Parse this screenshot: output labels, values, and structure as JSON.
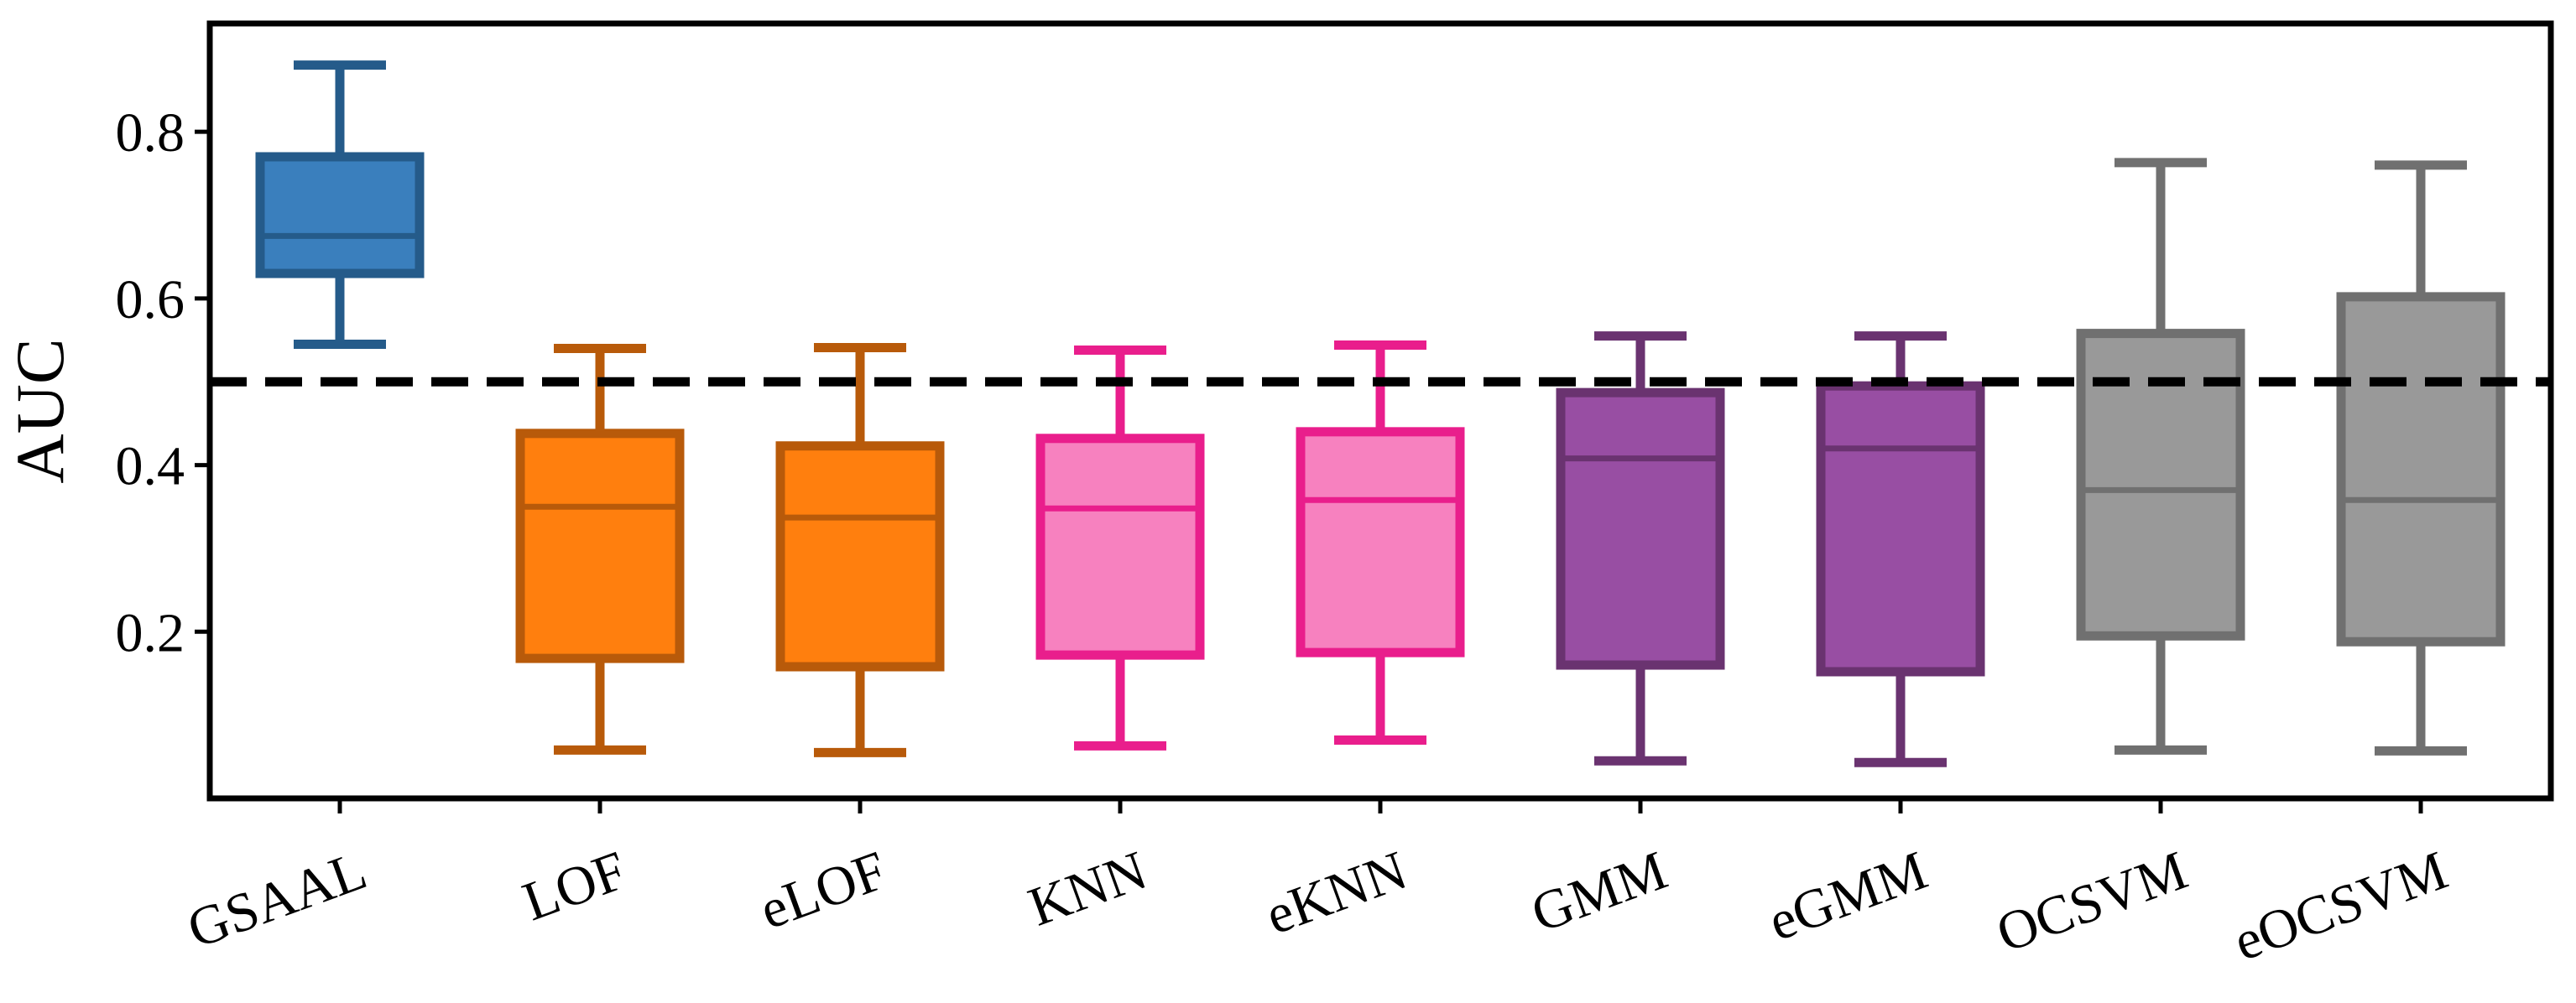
{
  "chart_data": {
    "type": "box",
    "ylabel": "AUC",
    "xlabel": "",
    "title": "",
    "ylim": [
      0.0,
      0.93
    ],
    "yticks": [
      0.2,
      0.4,
      0.6,
      0.8
    ],
    "ytick_labels": [
      "0.2",
      "0.4",
      "0.6",
      "0.8"
    ],
    "reference_line": {
      "y": 0.5,
      "style": "dashed",
      "color": "#000000"
    },
    "grid": false,
    "categories": [
      "GSAAL",
      "LOF",
      "eLOF",
      "KNN",
      "eKNN",
      "GMM",
      "eGMM",
      "OCSVM",
      "eOCSVM"
    ],
    "series": [
      {
        "category": "GSAAL",
        "whisker_low": 0.545,
        "q1": 0.63,
        "median": 0.675,
        "q3": 0.77,
        "whisker_high": 0.88,
        "fill": "#3a7fbd",
        "edge": "#255b8a"
      },
      {
        "category": "LOF",
        "whisker_low": 0.058,
        "q1": 0.168,
        "median": 0.35,
        "q3": 0.438,
        "whisker_high": 0.54,
        "fill": "#ff7f0e",
        "edge": "#b85a0a"
      },
      {
        "category": "eLOF",
        "whisker_low": 0.055,
        "q1": 0.158,
        "median": 0.337,
        "q3": 0.423,
        "whisker_high": 0.541,
        "fill": "#ff7f0e",
        "edge": "#b85a0a"
      },
      {
        "category": "KNN",
        "whisker_low": 0.063,
        "q1": 0.172,
        "median": 0.348,
        "q3": 0.432,
        "whisker_high": 0.538,
        "fill": "#f781bf",
        "edge": "#e91e8c"
      },
      {
        "category": "eKNN",
        "whisker_low": 0.07,
        "q1": 0.175,
        "median": 0.358,
        "q3": 0.44,
        "whisker_high": 0.544,
        "fill": "#f781bf",
        "edge": "#e91e8c"
      },
      {
        "category": "GMM",
        "whisker_low": 0.045,
        "q1": 0.16,
        "median": 0.408,
        "q3": 0.487,
        "whisker_high": 0.555,
        "fill": "#984ea3",
        "edge": "#6a3370"
      },
      {
        "category": "eGMM",
        "whisker_low": 0.043,
        "q1": 0.152,
        "median": 0.42,
        "q3": 0.495,
        "whisker_high": 0.555,
        "fill": "#984ea3",
        "edge": "#6a3370"
      },
      {
        "category": "OCSVM",
        "whisker_low": 0.058,
        "q1": 0.195,
        "median": 0.37,
        "q3": 0.558,
        "whisker_high": 0.763,
        "fill": "#999999",
        "edge": "#707070"
      },
      {
        "category": "eOCSVM",
        "whisker_low": 0.057,
        "q1": 0.188,
        "median": 0.358,
        "q3": 0.602,
        "whisker_high": 0.76,
        "fill": "#999999",
        "edge": "#707070"
      }
    ]
  }
}
